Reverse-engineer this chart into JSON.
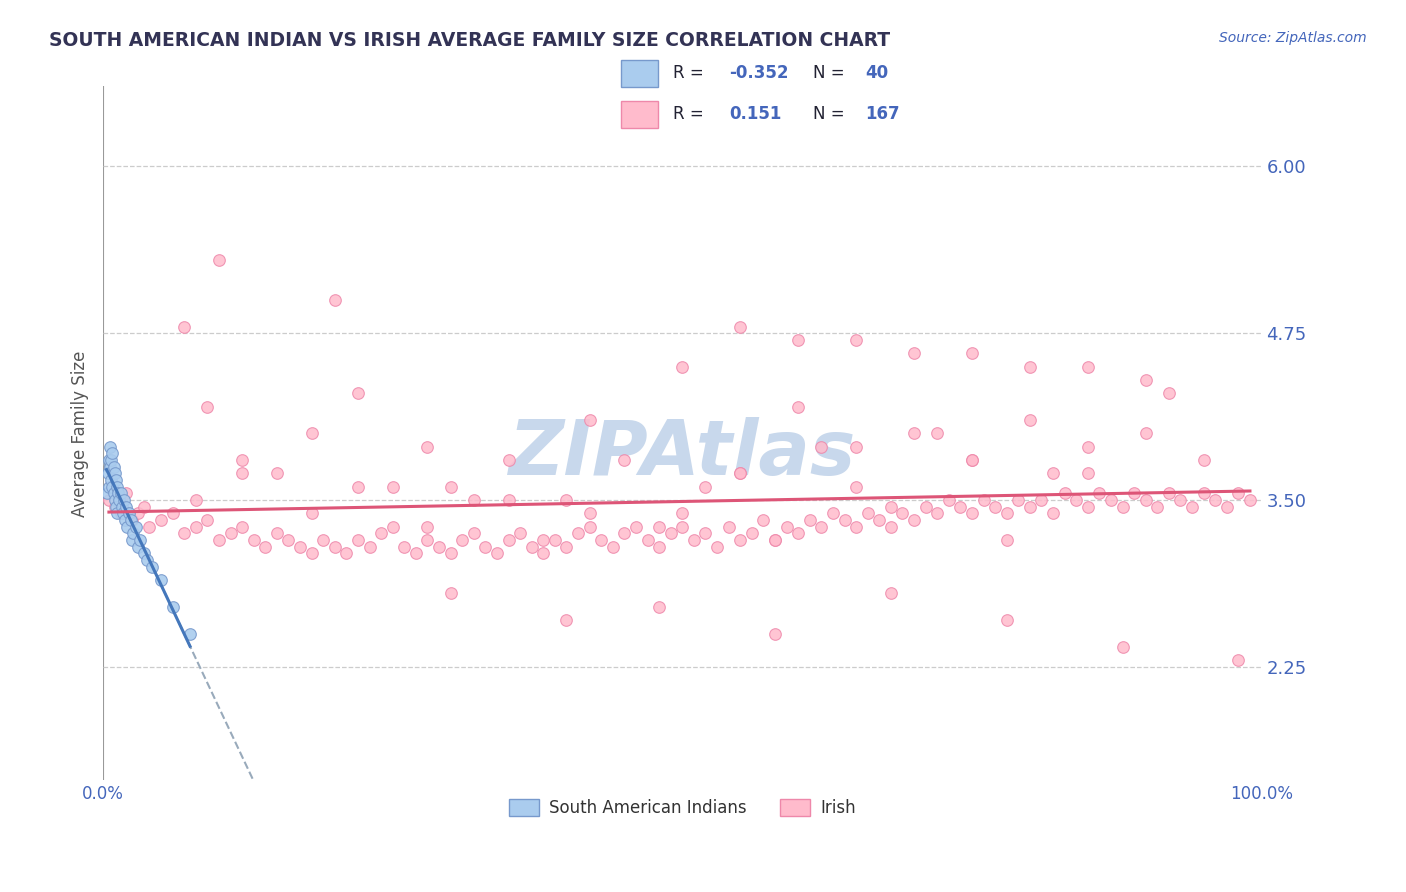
{
  "title": "SOUTH AMERICAN INDIAN VS IRISH AVERAGE FAMILY SIZE CORRELATION CHART",
  "source_text": "Source: ZipAtlas.com",
  "watermark": "ZIPAtlas",
  "ylabel": "Average Family Size",
  "right_yticks": [
    2.25,
    3.5,
    4.75,
    6.0
  ],
  "xmin": 0.0,
  "xmax": 1.0,
  "ymin": 1.4,
  "ymax": 6.6,
  "blue_face_color": "#AACCEE",
  "blue_edge_color": "#7799CC",
  "pink_face_color": "#FFBBCC",
  "pink_edge_color": "#EE88AA",
  "trend_blue_color": "#4477BB",
  "trend_pink_color": "#DD5577",
  "dashed_line_color": "#99AABB",
  "legend_r_blue": "-0.352",
  "legend_n_blue": "40",
  "legend_r_pink": "0.151",
  "legend_n_pink": "167",
  "legend_label_blue": "South American Indians",
  "legend_label_pink": "Irish",
  "title_color": "#333355",
  "axis_label_color": "#4466BB",
  "r_value_color": "#4466BB",
  "n_label_color": "#222233",
  "watermark_color": "#C8D8EC",
  "blue_scatter_x": [
    0.003,
    0.004,
    0.005,
    0.005,
    0.006,
    0.006,
    0.007,
    0.007,
    0.008,
    0.008,
    0.009,
    0.009,
    0.01,
    0.01,
    0.011,
    0.011,
    0.012,
    0.012,
    0.013,
    0.014,
    0.015,
    0.016,
    0.017,
    0.018,
    0.019,
    0.02,
    0.021,
    0.022,
    0.024,
    0.025,
    0.026,
    0.028,
    0.03,
    0.032,
    0.035,
    0.038,
    0.042,
    0.05,
    0.06,
    0.075
  ],
  "blue_scatter_y": [
    3.55,
    3.7,
    3.8,
    3.6,
    3.9,
    3.75,
    3.65,
    3.8,
    3.85,
    3.6,
    3.75,
    3.55,
    3.7,
    3.5,
    3.65,
    3.45,
    3.6,
    3.4,
    3.55,
    3.5,
    3.55,
    3.45,
    3.4,
    3.5,
    3.35,
    3.45,
    3.3,
    3.4,
    3.35,
    3.2,
    3.25,
    3.3,
    3.15,
    3.2,
    3.1,
    3.05,
    3.0,
    2.9,
    2.7,
    2.5
  ],
  "pink_scatter_x": [
    0.005,
    0.01,
    0.015,
    0.02,
    0.025,
    0.03,
    0.035,
    0.04,
    0.05,
    0.06,
    0.07,
    0.08,
    0.09,
    0.1,
    0.11,
    0.12,
    0.13,
    0.14,
    0.15,
    0.16,
    0.17,
    0.18,
    0.19,
    0.2,
    0.21,
    0.22,
    0.23,
    0.24,
    0.25,
    0.26,
    0.27,
    0.28,
    0.29,
    0.3,
    0.31,
    0.32,
    0.33,
    0.34,
    0.35,
    0.36,
    0.37,
    0.38,
    0.39,
    0.4,
    0.41,
    0.42,
    0.43,
    0.44,
    0.45,
    0.46,
    0.47,
    0.48,
    0.49,
    0.5,
    0.51,
    0.52,
    0.53,
    0.54,
    0.55,
    0.56,
    0.57,
    0.58,
    0.59,
    0.6,
    0.61,
    0.62,
    0.63,
    0.64,
    0.65,
    0.66,
    0.67,
    0.68,
    0.69,
    0.7,
    0.71,
    0.72,
    0.73,
    0.74,
    0.75,
    0.76,
    0.77,
    0.78,
    0.79,
    0.8,
    0.81,
    0.82,
    0.83,
    0.84,
    0.85,
    0.86,
    0.87,
    0.88,
    0.89,
    0.9,
    0.91,
    0.92,
    0.93,
    0.94,
    0.95,
    0.96,
    0.97,
    0.98,
    0.99,
    0.07,
    0.09,
    0.12,
    0.15,
    0.18,
    0.22,
    0.28,
    0.35,
    0.42,
    0.5,
    0.55,
    0.6,
    0.65,
    0.7,
    0.75,
    0.8,
    0.85,
    0.9,
    0.95,
    0.1,
    0.2,
    0.3,
    0.4,
    0.48,
    0.58,
    0.68,
    0.78,
    0.88,
    0.98,
    0.25,
    0.35,
    0.45,
    0.55,
    0.65,
    0.75,
    0.85,
    0.6,
    0.7,
    0.8,
    0.9,
    0.5,
    0.4,
    0.3,
    0.55,
    0.65,
    0.75,
    0.85,
    0.92,
    0.78,
    0.68,
    0.58,
    0.48,
    0.38,
    0.28,
    0.18,
    0.08,
    0.62,
    0.72,
    0.82,
    0.52,
    0.42,
    0.32,
    0.22,
    0.12
  ],
  "pink_scatter_y": [
    3.5,
    3.45,
    3.4,
    3.55,
    3.35,
    3.4,
    3.45,
    3.3,
    3.35,
    3.4,
    3.25,
    3.3,
    3.35,
    3.2,
    3.25,
    3.3,
    3.2,
    3.15,
    3.25,
    3.2,
    3.15,
    3.1,
    3.2,
    3.15,
    3.1,
    3.2,
    3.15,
    3.25,
    3.3,
    3.15,
    3.1,
    3.2,
    3.15,
    3.1,
    3.2,
    3.25,
    3.15,
    3.1,
    3.2,
    3.25,
    3.15,
    3.1,
    3.2,
    3.15,
    3.25,
    3.3,
    3.2,
    3.15,
    3.25,
    3.3,
    3.2,
    3.15,
    3.25,
    3.3,
    3.2,
    3.25,
    3.15,
    3.3,
    3.2,
    3.25,
    3.35,
    3.2,
    3.3,
    3.25,
    3.35,
    3.3,
    3.4,
    3.35,
    3.3,
    3.4,
    3.35,
    3.45,
    3.4,
    3.35,
    3.45,
    3.4,
    3.5,
    3.45,
    3.4,
    3.5,
    3.45,
    3.4,
    3.5,
    3.45,
    3.5,
    3.4,
    3.55,
    3.5,
    3.45,
    3.55,
    3.5,
    3.45,
    3.55,
    3.5,
    3.45,
    3.55,
    3.5,
    3.45,
    3.55,
    3.5,
    3.45,
    3.55,
    3.5,
    4.8,
    4.2,
    3.8,
    3.7,
    4.0,
    4.3,
    3.9,
    3.8,
    4.1,
    4.5,
    3.7,
    4.2,
    3.9,
    4.0,
    3.8,
    4.1,
    3.9,
    4.0,
    3.8,
    5.3,
    5.0,
    2.8,
    2.6,
    2.7,
    2.5,
    2.8,
    2.6,
    2.4,
    2.3,
    3.6,
    3.5,
    3.8,
    3.7,
    3.6,
    3.8,
    3.7,
    4.7,
    4.6,
    4.5,
    4.4,
    3.4,
    3.5,
    3.6,
    4.8,
    4.7,
    4.6,
    4.5,
    4.3,
    3.2,
    3.3,
    3.2,
    3.3,
    3.2,
    3.3,
    3.4,
    3.5,
    3.9,
    4.0,
    3.7,
    3.6,
    3.4,
    3.5,
    3.6,
    3.7
  ]
}
